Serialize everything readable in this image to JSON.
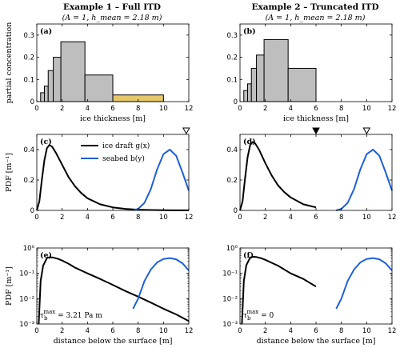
{
  "columns": [
    {
      "title": "Example 1 – Full ITD",
      "subtitle": "(A = 1,  h_mean = 2.18 m)"
    },
    {
      "title": "Example 2 – Truncated ITD",
      "subtitle": "(A = 1,  h_mean = 2.18 m)"
    }
  ],
  "colors": {
    "bar_gray": "#bebebe",
    "bar_yellow": "#e6c86a",
    "draft": "#000000",
    "seabed": "#1f5fd6"
  },
  "chart_data": [
    {
      "panel": "(a)",
      "type": "bar",
      "xlabel": "ice thickness [m]",
      "ylabel": "partial concentration",
      "xlim": [
        0,
        12
      ],
      "ylim": [
        0,
        0.35
      ],
      "xticks": [
        "0",
        "2",
        "4",
        "6",
        "8",
        "10",
        "12"
      ],
      "yticks": [
        "0",
        "0.1",
        "0.2",
        "0.3"
      ],
      "bins": [
        {
          "x0": 0.3,
          "x1": 0.6,
          "value": 0.04,
          "color": "gray"
        },
        {
          "x0": 0.6,
          "x1": 0.9,
          "value": 0.07,
          "color": "gray"
        },
        {
          "x0": 0.9,
          "x1": 1.3,
          "value": 0.14,
          "color": "gray"
        },
        {
          "x0": 1.3,
          "x1": 1.9,
          "value": 0.2,
          "color": "gray"
        },
        {
          "x0": 1.9,
          "x1": 3.8,
          "value": 0.27,
          "color": "gray"
        },
        {
          "x0": 3.8,
          "x1": 6.0,
          "value": 0.12,
          "color": "gray"
        },
        {
          "x0": 6.0,
          "x1": 10.0,
          "value": 0.03,
          "color": "yellow"
        }
      ]
    },
    {
      "panel": "(b)",
      "type": "bar",
      "xlabel": "ice thickness [m]",
      "ylabel": "",
      "xlim": [
        0,
        12
      ],
      "ylim": [
        0,
        0.35
      ],
      "xticks": [
        "0",
        "2",
        "4",
        "6",
        "8",
        "10",
        "12"
      ],
      "yticks": [
        "0",
        "0.1",
        "0.2",
        "0.3"
      ],
      "bins": [
        {
          "x0": 0.3,
          "x1": 0.6,
          "value": 0.05,
          "color": "gray"
        },
        {
          "x0": 0.6,
          "x1": 0.9,
          "value": 0.08,
          "color": "gray"
        },
        {
          "x0": 0.9,
          "x1": 1.3,
          "value": 0.15,
          "color": "gray"
        },
        {
          "x0": 1.3,
          "x1": 1.9,
          "value": 0.21,
          "color": "gray"
        },
        {
          "x0": 1.9,
          "x1": 3.8,
          "value": 0.28,
          "color": "gray"
        },
        {
          "x0": 3.8,
          "x1": 6.0,
          "value": 0.15,
          "color": "gray"
        }
      ]
    },
    {
      "panel": "(c)",
      "type": "line",
      "xlabel": "",
      "ylabel": "PDF  [m⁻¹]",
      "xlim": [
        0,
        12
      ],
      "ylim": [
        0,
        0.5
      ],
      "xticks": [
        "0",
        "2",
        "4",
        "6",
        "8",
        "10",
        "12"
      ],
      "yticks": [
        "0",
        "0.2",
        "0.4"
      ],
      "legend": [
        {
          "label": "ice draft  g(x)",
          "series": "draft"
        },
        {
          "label": "seabed   b(y)",
          "series": "seabed"
        }
      ],
      "series": [
        {
          "name": "ice draft  g(x)",
          "key": "draft",
          "x": [
            0,
            0.2,
            0.4,
            0.6,
            0.8,
            1.0,
            1.2,
            1.5,
            2.0,
            2.5,
            3.0,
            3.5,
            4.0,
            5.0,
            6.0,
            7.0,
            8.0,
            9.0,
            10.0,
            11.0,
            12.0
          ],
          "y": [
            0,
            0.06,
            0.2,
            0.33,
            0.41,
            0.43,
            0.42,
            0.38,
            0.3,
            0.22,
            0.16,
            0.115,
            0.08,
            0.04,
            0.02,
            0.01,
            0.005,
            0.0025,
            0.0012,
            0.0006,
            0.0003
          ]
        },
        {
          "name": "seabed   b(y)",
          "key": "seabed",
          "x": [
            7.6,
            8.0,
            8.5,
            9.0,
            9.5,
            10.0,
            10.5,
            11.0,
            11.5,
            12.0
          ],
          "y": [
            0,
            0.01,
            0.05,
            0.14,
            0.27,
            0.37,
            0.4,
            0.36,
            0.25,
            0.13
          ]
        }
      ],
      "markers": [
        {
          "x": 11.8,
          "type": "open-triangle"
        }
      ]
    },
    {
      "panel": "(d)",
      "type": "line",
      "xlabel": "",
      "ylabel": "",
      "xlim": [
        0,
        12
      ],
      "ylim": [
        0,
        0.5
      ],
      "xticks": [
        "0",
        "2",
        "4",
        "6",
        "8",
        "10",
        "12"
      ],
      "yticks": [
        "0",
        "0.2",
        "0.4"
      ],
      "series": [
        {
          "name": "",
          "key": "draft",
          "x": [
            0,
            0.2,
            0.4,
            0.6,
            0.8,
            1.0,
            1.2,
            1.5,
            2.0,
            2.5,
            3.0,
            3.5,
            4.0,
            5.0,
            6.0
          ],
          "y": [
            0,
            0.06,
            0.21,
            0.35,
            0.43,
            0.45,
            0.44,
            0.4,
            0.31,
            0.23,
            0.165,
            0.12,
            0.085,
            0.04,
            0.02
          ]
        },
        {
          "name": "",
          "key": "seabed",
          "x": [
            7.6,
            8.0,
            8.5,
            9.0,
            9.5,
            10.0,
            10.5,
            11.0,
            11.5,
            12.0
          ],
          "y": [
            0,
            0.01,
            0.05,
            0.14,
            0.27,
            0.37,
            0.4,
            0.36,
            0.25,
            0.13
          ]
        }
      ],
      "markers": [
        {
          "x": 6.0,
          "type": "filled-triangle"
        },
        {
          "x": 10.0,
          "type": "open-triangle"
        }
      ]
    },
    {
      "panel": "(e)",
      "type": "line",
      "yscale": "log",
      "xlabel": "distance below the surface [m]",
      "ylabel": "PDF  [m⁻¹]",
      "xlim": [
        0,
        12
      ],
      "ylim": [
        0.001,
        1
      ],
      "xticks": [
        "0",
        "2",
        "4",
        "6",
        "8",
        "10",
        "12"
      ],
      "yticks": [
        "10⁰",
        "10⁻¹",
        "10⁻²",
        "10⁻³"
      ],
      "annotation": "τ_b^max = 3.21 Pa m",
      "series": [
        {
          "name": "",
          "key": "draft",
          "x": [
            0.15,
            0.3,
            0.5,
            0.8,
            1.0,
            1.3,
            1.7,
            2.0,
            2.5,
            3.0,
            4.0,
            5.0,
            6.0,
            7.0,
            8.0,
            9.0,
            10.0,
            11.0,
            12.0
          ],
          "y": [
            0.001,
            0.05,
            0.2,
            0.4,
            0.43,
            0.42,
            0.37,
            0.32,
            0.24,
            0.17,
            0.1,
            0.06,
            0.035,
            0.02,
            0.012,
            0.007,
            0.004,
            0.0024,
            0.0013
          ]
        },
        {
          "name": "",
          "key": "seabed",
          "x": [
            7.6,
            8.0,
            8.5,
            9.0,
            9.5,
            10.0,
            10.5,
            11.0,
            11.5,
            12.0
          ],
          "y": [
            0.004,
            0.01,
            0.05,
            0.14,
            0.27,
            0.37,
            0.4,
            0.36,
            0.25,
            0.13
          ]
        }
      ]
    },
    {
      "panel": "(f)",
      "type": "line",
      "yscale": "log",
      "xlabel": "distance below the surface [m]",
      "ylabel": "",
      "xlim": [
        0,
        12
      ],
      "ylim": [
        0.001,
        1
      ],
      "xticks": [
        "0",
        "2",
        "4",
        "6",
        "8",
        "10",
        "12"
      ],
      "yticks": [
        "10⁰",
        "10⁻¹",
        "10⁻²",
        "10⁻³"
      ],
      "annotation": "τ_b^max = 0",
      "series": [
        {
          "name": "",
          "key": "draft",
          "x": [
            0.15,
            0.3,
            0.5,
            0.8,
            1.0,
            1.3,
            1.7,
            2.0,
            2.5,
            3.0,
            4.0,
            5.0,
            6.0
          ],
          "y": [
            0.001,
            0.05,
            0.21,
            0.42,
            0.45,
            0.44,
            0.39,
            0.34,
            0.26,
            0.2,
            0.1,
            0.06,
            0.03
          ]
        },
        {
          "name": "",
          "key": "seabed",
          "x": [
            7.6,
            8.0,
            8.5,
            9.0,
            9.5,
            10.0,
            10.5,
            11.0,
            11.5,
            12.0
          ],
          "y": [
            0.004,
            0.01,
            0.05,
            0.14,
            0.27,
            0.37,
            0.4,
            0.36,
            0.25,
            0.13
          ]
        }
      ]
    }
  ]
}
